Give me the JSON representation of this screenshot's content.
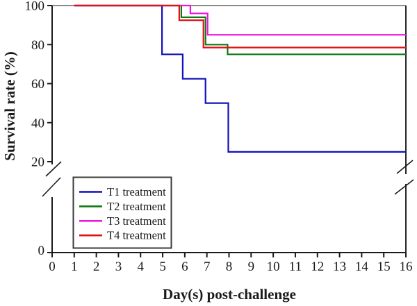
{
  "figure": {
    "background": "#ffffff"
  },
  "chart_data": {
    "type": "line",
    "step_mode": "survival-step",
    "title": "",
    "xlabel": "Day(s) post-challenge",
    "ylabel": "Survival rate (%)",
    "xlim": [
      0,
      16
    ],
    "ylim": [
      0,
      100
    ],
    "x_ticks": [
      0,
      1,
      2,
      3,
      4,
      5,
      6,
      7,
      8,
      9,
      10,
      11,
      12,
      13,
      14,
      15,
      16
    ],
    "y_ticks": [
      100,
      80,
      60,
      40,
      20,
      0
    ],
    "y_axis_break": {
      "between": [
        0,
        20
      ]
    },
    "grid": false,
    "legend_position": "lower-left",
    "colors": {
      "axis": "#1a1a1a",
      "frame_top": "#8c8c8c",
      "frame_right": "#262626",
      "legend_border": "#3a3a3a",
      "t1_blue": "#1010BC",
      "t2_green": "#0A7A14",
      "t3_magenta": "#EF14E0",
      "t4_red": "#E31212"
    },
    "series": [
      {
        "id": "t1",
        "name": "T1 treatment",
        "color": "#1010BC",
        "start": {
          "day": 1,
          "value": 100
        },
        "steps": [
          {
            "day": 5,
            "value": 75
          },
          {
            "day": 6,
            "value": 62.5
          },
          {
            "day": 7,
            "value": 50
          },
          {
            "day": 8,
            "value": 25
          }
        ],
        "end_day": 16,
        "final_value": 25
      },
      {
        "id": "t2",
        "name": "T2 treatment",
        "color": "#0A7A14",
        "start": {
          "day": 1,
          "value": 100
        },
        "steps": [
          {
            "day": 6,
            "value": 94
          },
          {
            "day": 7,
            "value": 80
          },
          {
            "day": 8,
            "value": 75
          }
        ],
        "end_day": 16,
        "final_value": 75
      },
      {
        "id": "t3",
        "name": "T3 treatment",
        "color": "#EF14E0",
        "start": {
          "day": 1,
          "value": 100
        },
        "steps": [
          {
            "day": 6,
            "value": 96
          },
          {
            "day": 7,
            "value": 85
          }
        ],
        "end_day": 16,
        "final_value": 85
      },
      {
        "id": "t4",
        "name": "T4 treatment",
        "color": "#E31212",
        "start": {
          "day": 1,
          "value": 100
        },
        "steps": [
          {
            "day": 6,
            "value": 92.5
          },
          {
            "day": 7,
            "value": 78.5
          }
        ],
        "end_day": 16,
        "final_value": 78.5
      }
    ],
    "legend": {
      "entries": [
        {
          "id": "t1",
          "label": "T1 treatment",
          "color": "#1010BC"
        },
        {
          "id": "t2",
          "label": "T2 treatment",
          "color": "#0A7A14"
        },
        {
          "id": "t3",
          "label": "T3 treatment",
          "color": "#EF14E0"
        },
        {
          "id": "t4",
          "label": "T4 treatment",
          "color": "#E31212"
        }
      ]
    }
  }
}
